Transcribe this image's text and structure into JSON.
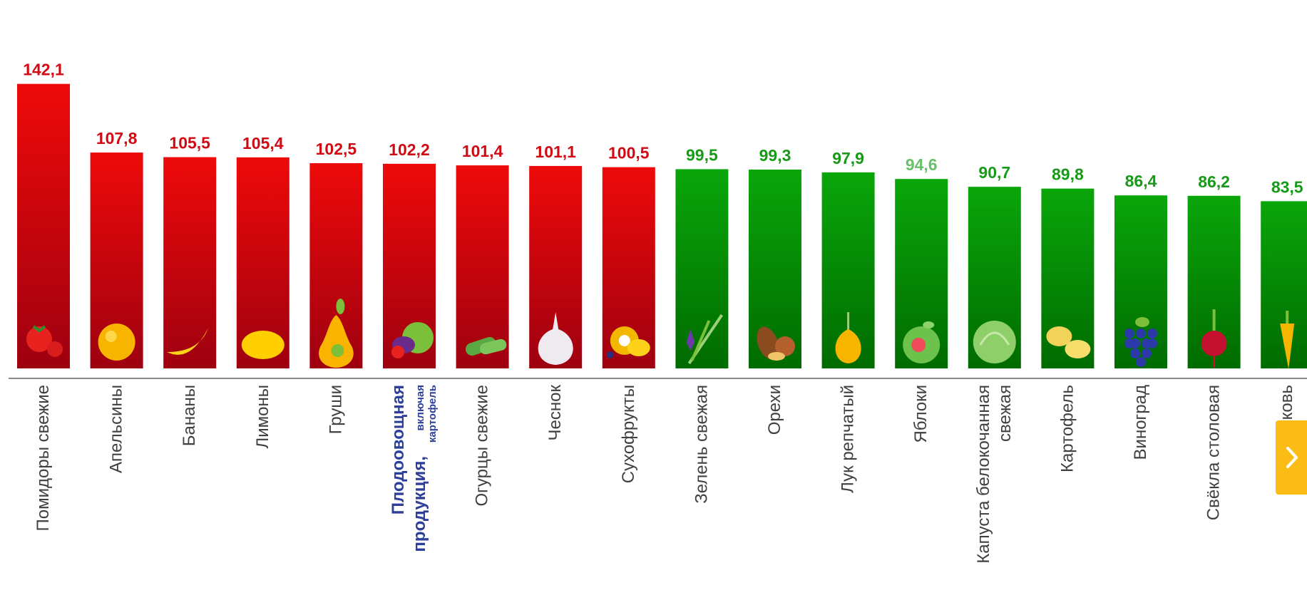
{
  "colors": {
    "red_top": "#ee0a0a",
    "red_bottom": "#9e0010",
    "green_top": "#0aa60a",
    "green_bottom": "#006b00",
    "red_label": "#d00a12",
    "green_label": "#179a17",
    "light_green_label": "#6abf6a",
    "axis": "#8a8a8a",
    "highlight_label": "#2e3f9a",
    "nav_button": "#fbbc16"
  },
  "chart_data": {
    "type": "bar",
    "title": "",
    "xlabel": "",
    "ylabel": "",
    "ylim": [
      0,
      145
    ],
    "grid": false,
    "legend": "none",
    "categories": [
      "Помидоры свежие",
      "Апельсины",
      "Бананы",
      "Лимоны",
      "Груши",
      "Плодоовощная продукция, включая картофель",
      "Огурцы свежие",
      "Чеснок",
      "Сухофрукты",
      "Зелень свежая",
      "Орехи",
      "Лук репчатый",
      "Яблоки",
      "Капуста белокочанная свежая",
      "Картофель",
      "Виноград",
      "Свёкла столовая",
      "Морковь"
    ],
    "values": [
      142.1,
      107.8,
      105.5,
      105.4,
      102.5,
      102.2,
      101.4,
      101.1,
      100.5,
      99.5,
      99.3,
      97.9,
      94.6,
      90.7,
      89.8,
      86.4,
      86.2,
      83.5
    ],
    "value_labels": [
      "142,1",
      "107,8",
      "105,5",
      "105,4",
      "102,5",
      "102,2",
      "101,4",
      "101,1",
      "100,5",
      "99,5",
      "99,3",
      "97,9",
      "94,6",
      "90,7",
      "89,8",
      "86,4",
      "86,2",
      "83,5"
    ],
    "label_lines": [
      [
        "Помидоры свежие"
      ],
      [
        "Апельсины"
      ],
      [
        "Бананы"
      ],
      [
        "Лимоны"
      ],
      [
        "Груши"
      ],
      [
        "Плодоовощная",
        "продукция,"
      ],
      [
        "Огурцы свежие"
      ],
      [
        "Чеснок"
      ],
      [
        "Сухофрукты"
      ],
      [
        "Зелень свежая"
      ],
      [
        "Орехи"
      ],
      [
        "Лук репчатый"
      ],
      [
        "Яблоки"
      ],
      [
        "Капуста белокочанная",
        "свежая"
      ],
      [
        "Картофель"
      ],
      [
        "Виноград"
      ],
      [
        "Свёкла столовая"
      ],
      [
        "Морковь"
      ]
    ],
    "highlight_index": 5,
    "highlight_small_lines": [
      "включая",
      "картофель"
    ],
    "icons": [
      "tomato-icon",
      "orange-icon",
      "banana-icon",
      "lemon-icon",
      "pear-icon",
      "vegetables-basket-icon",
      "cucumber-icon",
      "garlic-icon",
      "dried-fruit-icon",
      "greens-icon",
      "nuts-icon",
      "onion-icon",
      "apple-icon",
      "cabbage-icon",
      "potato-icon",
      "grape-icon",
      "beet-icon",
      "carrot-icon"
    ]
  }
}
